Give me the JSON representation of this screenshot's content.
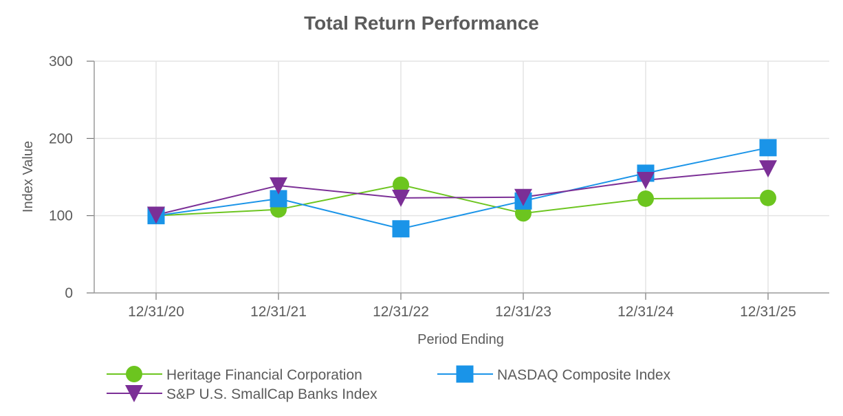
{
  "chart_data": {
    "type": "line",
    "title": "Total Return Performance",
    "xlabel": "Period Ending",
    "ylabel": "Index Value",
    "categories": [
      "12/31/20",
      "12/31/21",
      "12/31/22",
      "12/31/23",
      "12/31/24",
      "12/31/25"
    ],
    "ylim": [
      0,
      300
    ],
    "yticks": [
      0,
      100,
      200,
      300
    ],
    "grid": true,
    "legend_position": "bottom",
    "series": [
      {
        "name": "Heritage Financial Corporation",
        "values": [
          100,
          108,
          140,
          103,
          122,
          123
        ],
        "color": "#6cc51f",
        "marker": "circle"
      },
      {
        "name": "NASDAQ Composite Index",
        "values": [
          100,
          122,
          83,
          119,
          155,
          188
        ],
        "color": "#1a94e8",
        "marker": "square"
      },
      {
        "name": "S&P U.S. SmallCap Banks Index",
        "values": [
          101,
          139,
          123,
          124,
          146,
          161
        ],
        "color": "#7b2f96",
        "marker": "triangle-down"
      }
    ]
  }
}
